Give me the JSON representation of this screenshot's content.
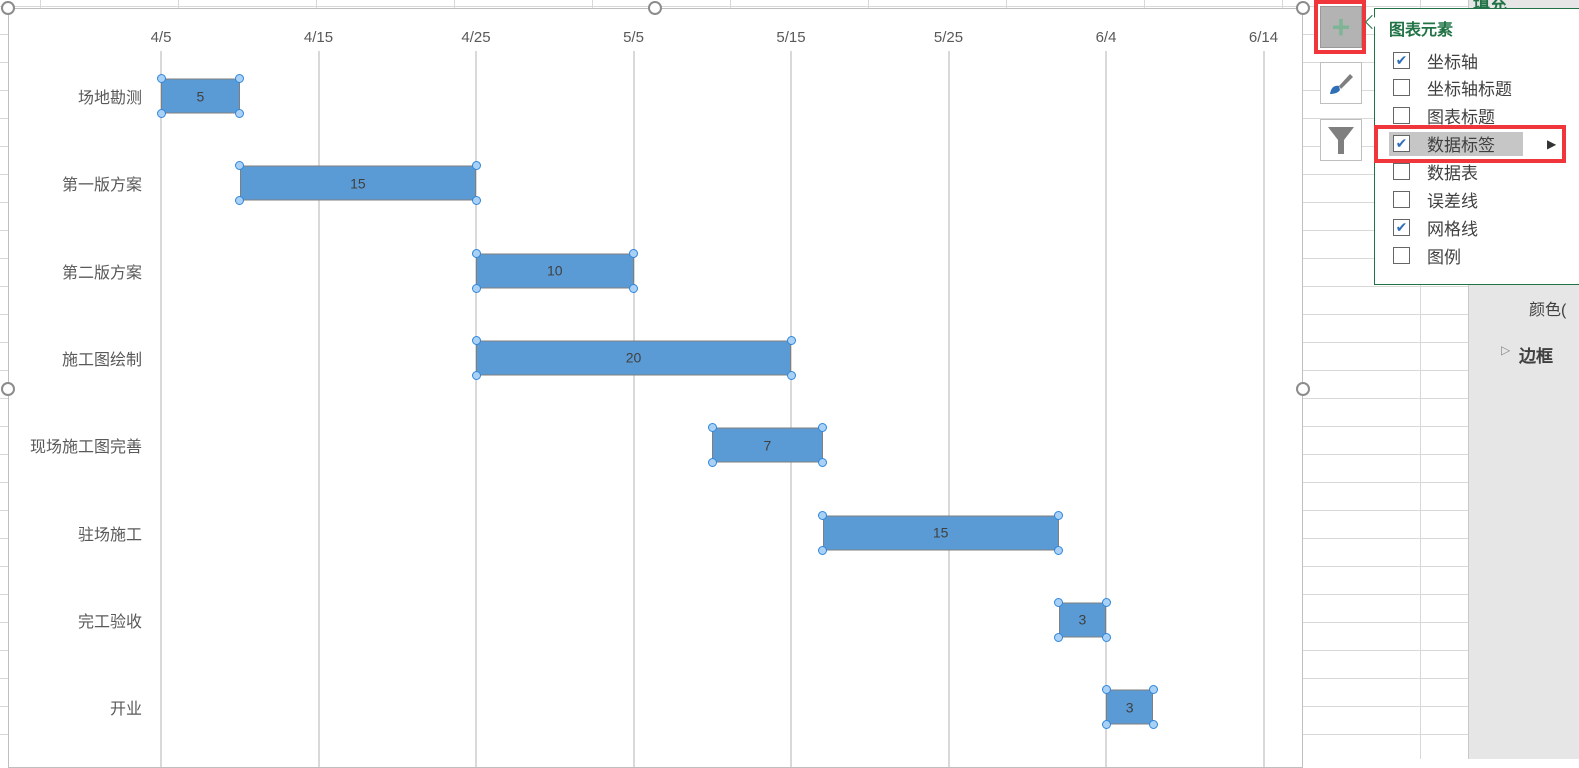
{
  "chart_data": {
    "type": "bar",
    "subtype": "gantt",
    "x_ticks": [
      "4/5",
      "4/15",
      "4/25",
      "5/5",
      "5/15",
      "5/25",
      "6/4",
      "6/14"
    ],
    "x_range_days_from_4_5": [
      0,
      72
    ],
    "tick_step_days": 10,
    "grid": "vertical",
    "categories": [
      "场地勘测",
      "第一版方案",
      "第二版方案",
      "施工图绘制",
      "现场施工图完善",
      "驻场施工",
      "完工验收",
      "开业"
    ],
    "start_offset_days": [
      0,
      5,
      20,
      20,
      35,
      42,
      57,
      60
    ],
    "durations": [
      5,
      15,
      10,
      20,
      7,
      15,
      3,
      3
    ],
    "labels": [
      "5",
      "15",
      "10",
      "20",
      "7",
      "15",
      "3",
      "3"
    ],
    "color": "#5b9bd5"
  },
  "popup": {
    "title": "图表元素",
    "items": [
      {
        "label": "坐标轴",
        "checked": true
      },
      {
        "label": "坐标轴标题",
        "checked": false
      },
      {
        "label": "图表标题",
        "checked": false
      },
      {
        "label": "数据标签",
        "checked": true,
        "highlighted": true,
        "has_submenu": true
      },
      {
        "label": "数据表",
        "checked": false
      },
      {
        "label": "误差线",
        "checked": false
      },
      {
        "label": "网格线",
        "checked": true
      },
      {
        "label": "图例",
        "checked": false
      }
    ]
  },
  "pane": {
    "fill_header": "填充",
    "color_label": "颜色(",
    "border_label": "边框"
  }
}
